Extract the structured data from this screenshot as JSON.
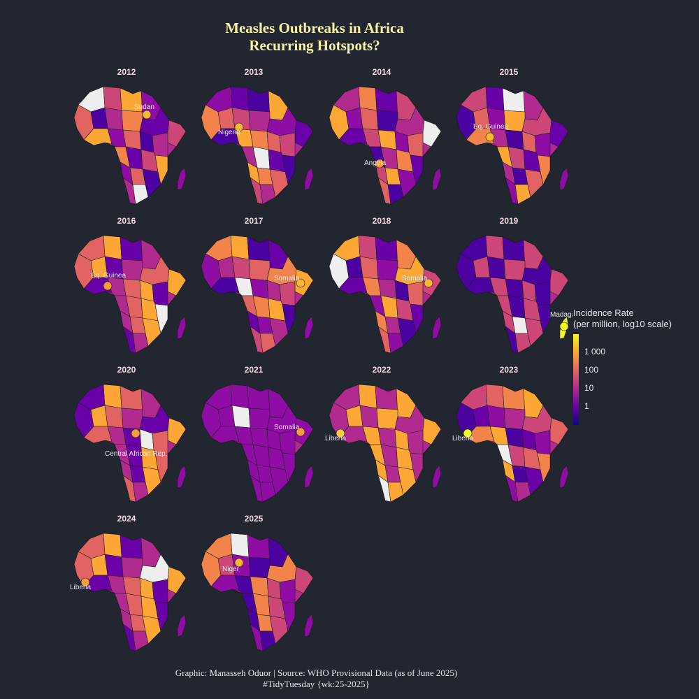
{
  "title": {
    "line1": "Measles Outbreaks in Africa",
    "line2": "Recurring Hotspots?"
  },
  "panels": [
    {
      "year": "2012",
      "label": "Sudan",
      "highlight_color": "#f7b733"
    },
    {
      "year": "2013",
      "label": "Nigeria",
      "highlight_color": "#f7b733"
    },
    {
      "year": "2014",
      "label": "Angola",
      "highlight_color": "#f89c3b"
    },
    {
      "year": "2015",
      "label": "Eq. Guinea",
      "highlight_color": "#f7b733"
    },
    {
      "year": "2016",
      "label": "Eq. Guinea",
      "highlight_color": "#f89c3b"
    },
    {
      "year": "2017",
      "label": "Somalia",
      "highlight_color": "#fdb42f"
    },
    {
      "year": "2018",
      "label": "Somalia",
      "highlight_color": "#fdb42f"
    },
    {
      "year": "2019",
      "label": "Madagascar",
      "highlight_color": "#f0f921"
    },
    {
      "year": "2020",
      "label": "Central African Rep.",
      "highlight_color": "#f89c3b"
    },
    {
      "year": "2021",
      "label": "Somalia",
      "highlight_color": "#f89c3b"
    },
    {
      "year": "2022",
      "label": "Liberia",
      "highlight_color": "#f7d13d"
    },
    {
      "year": "2023",
      "label": "Liberia",
      "highlight_color": "#f0f921"
    },
    {
      "year": "2024",
      "label": "Liberia",
      "highlight_color": "#f89c3b"
    },
    {
      "year": "2025",
      "label": "Niger",
      "highlight_color": "#f7b733"
    }
  ],
  "legend": {
    "title_line1": "Incidence Rate",
    "title_line2": "(per million, log10 scale)",
    "ticks": [
      "1 000",
      "100",
      "10",
      "1"
    ],
    "colors": [
      "#0d0887",
      "#6a00a8",
      "#b12a90",
      "#e16462",
      "#fca636",
      "#f0f921"
    ]
  },
  "caption": {
    "line1": "Graphic: Manasseh Oduor | Source: WHO Provisional Data (as of June 2025)",
    "line2": "#TidyTuesday {wk:25-2025}"
  },
  "colors": {
    "background": "#212631",
    "title": "#f8f3a4",
    "missing": "#eeeeee"
  }
}
